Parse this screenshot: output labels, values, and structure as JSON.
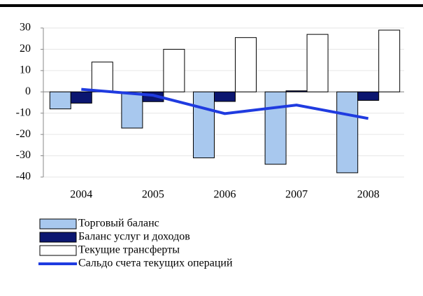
{
  "chart_data": {
    "type": "bar",
    "categories": [
      "2004",
      "2005",
      "2006",
      "2007",
      "2008"
    ],
    "series": [
      {
        "name": "Торговый баланс",
        "color": "#a8c8ee",
        "values": [
          -8,
          -17,
          -31,
          -34,
          -38
        ]
      },
      {
        "name": "Баланс услуг и доходов",
        "color": "#0b1670",
        "values": [
          -5.3,
          -4.6,
          -4.5,
          0.5,
          -4
        ]
      },
      {
        "name": "Текущие трансферты",
        "color": "#ffffff",
        "values": [
          14,
          20,
          25.5,
          27,
          29
        ]
      },
      {
        "name": "Сальдо счета текущих операций",
        "color": "#1f3be0",
        "type": "line",
        "values": [
          1.2,
          -1.6,
          -10.2,
          -6.2,
          -12.5
        ]
      }
    ],
    "ylim": [
      -40,
      30
    ],
    "yticks": [
      -40,
      -30,
      -20,
      -10,
      0,
      10,
      20,
      30
    ],
    "grid": true
  }
}
